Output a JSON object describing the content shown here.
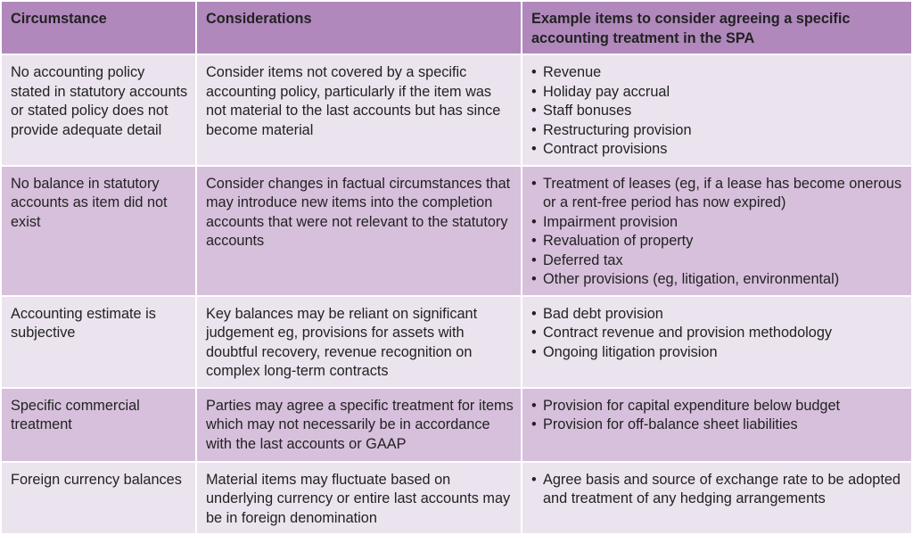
{
  "headers": [
    "Circumstance",
    "Considerations",
    "Example items to consider agreeing a specific accounting treatment in the SPA"
  ],
  "colors": {
    "header": "#b088bc",
    "row_light": "#ebe3ee",
    "row_dark": "#d7c0dc"
  },
  "rows": [
    {
      "circumstance": "No accounting policy stated in statutory accounts or stated policy does not provide adequate detail",
      "considerations": "Consider items not covered by a specific accounting policy, particularly if the item was not material to the last accounts but has since become material",
      "examples": [
        "Revenue",
        "Holiday pay accrual",
        "Staff bonuses",
        "Restructuring provision",
        "Contract provisions"
      ]
    },
    {
      "circumstance": "No balance in statutory accounts as item did not exist",
      "considerations": "Consider changes in factual circumstances that may introduce new items into the completion accounts that were not relevant to the statutory accounts",
      "examples": [
        "Treatment of leases (eg, if a lease has become onerous or a rent-free period has now expired)",
        "Impairment provision",
        "Revaluation of property",
        "Deferred tax",
        "Other provisions (eg, litigation,  environmental)"
      ]
    },
    {
      "circumstance": "Accounting estimate is subjective",
      "considerations": "Key balances may be reliant on significant judgement eg, provisions for assets with doubtful recovery, revenue recognition on complex long-term contracts",
      "examples": [
        "Bad debt provision",
        "Contract revenue and provision methodology",
        "Ongoing litigation provision"
      ]
    },
    {
      "circumstance": "Specific commercial treatment",
      "considerations": "Parties may agree a specific treatment for items which may not necessarily be in accordance with the last accounts or GAAP",
      "examples": [
        "Provision for capital expenditure below budget",
        "Provision for off-balance sheet liabilities"
      ]
    },
    {
      "circumstance": "Foreign currency balances",
      "considerations": "Material items may fluctuate based on underlying currency or entire last accounts may be in foreign denomination",
      "examples": [
        "Agree basis and source of exchange rate to be adopted and treatment of any hedging arrangements"
      ]
    }
  ]
}
